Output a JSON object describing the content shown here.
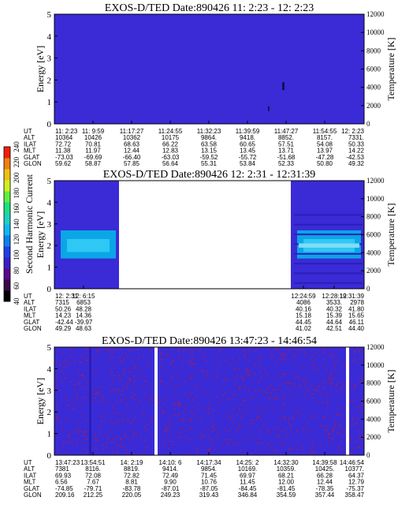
{
  "palette": {
    "background_blue": "#3a2bd6",
    "grid_blue": "#2a1fb8",
    "speckle": "#b01a4a",
    "mid_cyan": "#0aa6e6",
    "light_cyan": "#2fc8f4",
    "pale_cyan": "#7fdcf6"
  },
  "colorbar": {
    "label": "Second Harmonic Current",
    "ticks": [
      "40",
      "60",
      "80",
      "100",
      "120",
      "140",
      "160",
      "180",
      "200",
      "220",
      "240"
    ],
    "colors": [
      "#000000",
      "#3a0a4a",
      "#5a0a8a",
      "#3a20c8",
      "#2040e8",
      "#1080f0",
      "#10b8f0",
      "#20d0c0",
      "#20e080",
      "#60f040",
      "#d0f020",
      "#f0c010",
      "#f08010",
      "#f02010"
    ]
  },
  "chart_data": [
    {
      "type": "heatmap",
      "title": "EXOS-D/TED   Date:890426   11: 2:23 - 12: 2:23",
      "ylabel": "Energy [eV]",
      "y2label": "Temperature [K]",
      "ylim": [
        0,
        5
      ],
      "y2lim": [
        0,
        12000
      ],
      "yticks": [
        "0",
        "1",
        "2",
        "3",
        "4",
        "5"
      ],
      "y2ticks": [
        "0",
        "2000",
        "4000",
        "6000",
        "8000",
        "10000",
        "12000"
      ],
      "data_gaps": [],
      "ephemeris": {
        "labels": [
          "UT",
          "ALT",
          "ILAT",
          "MLT",
          "GLAT",
          "GLON"
        ],
        "columns": [
          [
            "11: 2:23",
            "10364",
            "72.72",
            "11.38",
            "-73.03",
            "59.62"
          ],
          [
            "11: 9:59",
            "10426",
            "70.81",
            "11.97",
            "-69.69",
            "58.87"
          ],
          [
            "11:17:27",
            "10362",
            "68.63",
            "12.44",
            "-66.40",
            "57.85"
          ],
          [
            "11:24:55",
            "10175",
            "66.22",
            "12.83",
            "-63.03",
            "56.64"
          ],
          [
            "11:32:23",
            "9864.",
            "63.58",
            "13.15",
            "-59.52",
            "55.31"
          ],
          [
            "11:39:59",
            "9418.",
            "60.65",
            "13.45",
            "-55.72",
            "53.84"
          ],
          [
            "11:47:27",
            "8852.",
            "57.51",
            "13.71",
            "-51.68",
            "52.33"
          ],
          [
            "11:54:55",
            "8157.",
            "54.08",
            "13.97",
            "-47.28",
            "50.80"
          ],
          [
            "12: 2:23",
            "7331.",
            "50.33",
            "14.22",
            "-42.53",
            "49.32"
          ]
        ]
      }
    },
    {
      "type": "heatmap",
      "title": "EXOS-D/TED   Date:890426   12: 2:31 - 12:31:39",
      "ylabel": "Energy [eV]",
      "y2label": "Temperature [K]",
      "ylim": [
        0,
        5
      ],
      "y2lim": [
        0,
        12000
      ],
      "yticks": [
        "0",
        "1",
        "2",
        "3",
        "4",
        "5"
      ],
      "y2ticks": [
        "0",
        "2000",
        "4000",
        "6000",
        "8000",
        "10000",
        "12000"
      ],
      "data_gaps": [
        [
          "12: 6:15",
          "12:24:59"
        ]
      ],
      "ephemeris": {
        "labels": [
          "UT",
          "ALT",
          "ILAT",
          "MLT",
          "GLAT",
          "GLON"
        ],
        "columns": [
          [
            "12: 2:31",
            "7315",
            "50.26",
            "14.23",
            "-42.44",
            "49.29"
          ],
          [
            "12: 6:15",
            "6853",
            "48.28",
            "14.36",
            "-39.97",
            "48.63"
          ],
          [
            "12:24:59",
            "4086",
            "40.16",
            "15.18",
            "44.45",
            "41.02"
          ],
          [
            "12:28:19",
            "3533.",
            "40.32",
            "15.39",
            "44.64",
            "42.51"
          ],
          [
            "12:31:39",
            "2978",
            "41.80",
            "15.65",
            "46.11",
            "44.40"
          ]
        ]
      }
    },
    {
      "type": "heatmap",
      "title": "EXOS-D/TED   Date:890426   13:47:23 - 14:46:54",
      "ylabel": "Energy [eV]",
      "y2label": "Temperature [K]",
      "ylim": [
        0,
        5
      ],
      "y2lim": [
        0,
        12000
      ],
      "yticks": [
        "0",
        "1",
        "2",
        "3",
        "4",
        "5"
      ],
      "y2ticks": [
        "0",
        "2000",
        "4000",
        "6000",
        "8000",
        "10000",
        "12000"
      ],
      "data_gaps": [
        [
          "14: 2:19",
          "14:10: 6"
        ]
      ],
      "ephemeris": {
        "labels": [
          "UT",
          "ALT",
          "ILAT",
          "MLT",
          "GLAT",
          "GLON"
        ],
        "columns": [
          [
            "13:47:23",
            "7381",
            "69.93",
            "6.56",
            "-74.85",
            "209.16"
          ],
          [
            "13:54:51",
            "8116.",
            "72.08",
            "7.67",
            "-79.71",
            "212.25"
          ],
          [
            "14: 2:19",
            "8819.",
            "72.82",
            "8.81",
            "-83.78",
            "220.05"
          ],
          [
            "14:10: 6",
            "9414.",
            "72.49",
            "9.90",
            "-87.01",
            "249.23"
          ],
          [
            "14:17:34",
            "9854.",
            "71.45",
            "10.76",
            "-87.05",
            "319.43"
          ],
          [
            "14:25: 2",
            "10169.",
            "69.97",
            "11.45",
            "-84.45",
            "346.84"
          ],
          [
            "14:32:30",
            "10359.",
            "68.21",
            "12.00",
            "-81.45",
            "354.59"
          ],
          [
            "14:39:58",
            "10425.",
            "66.28",
            "12.44",
            "-78.35",
            "357.44"
          ],
          [
            "14:46:54",
            "10377.",
            "64.37",
            "12.79",
            "-75.37",
            "358.47"
          ]
        ]
      }
    }
  ]
}
